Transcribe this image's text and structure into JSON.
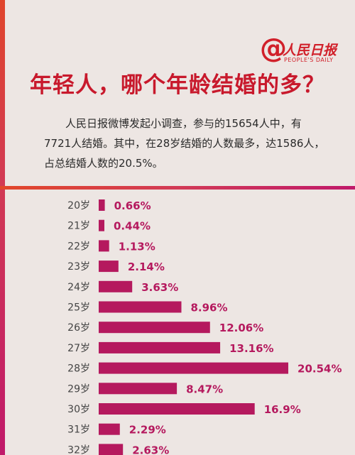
{
  "logo": {
    "at": "@",
    "name": "人民日报",
    "sub": "PEOPLE'S DAILY"
  },
  "title": "年轻人，哪个年龄结婚的多？",
  "intro": {
    "line1": "人民日报微博发起小调查，参与的15654人中，有",
    "line2": "7721人结婚。其中，在28岁结婚的人数最多，达1586人，",
    "line3": "占总结婚人数的20.5%。"
  },
  "colors": {
    "bar": "#b5195e",
    "title": "#c8192c",
    "accent": "#d1202a"
  },
  "chart_data": {
    "type": "bar",
    "orientation": "horizontal",
    "categories": [
      "20岁",
      "21岁",
      "22岁",
      "23岁",
      "24岁",
      "25岁",
      "26岁",
      "27岁",
      "28岁",
      "29岁",
      "30岁",
      "31岁",
      "32岁"
    ],
    "values": [
      0.66,
      0.44,
      1.13,
      2.14,
      3.63,
      8.96,
      12.06,
      13.16,
      20.54,
      8.47,
      16.9,
      2.29,
      2.63
    ],
    "value_labels": [
      "0.66%",
      "0.44%",
      "1.13%",
      "2.14%",
      "3.63%",
      "8.96%",
      "12.06%",
      "13.16%",
      "20.54%",
      "8.47%",
      "16.9%",
      "2.29%",
      "2.63%"
    ],
    "bar_color": "#b5195e"
  }
}
